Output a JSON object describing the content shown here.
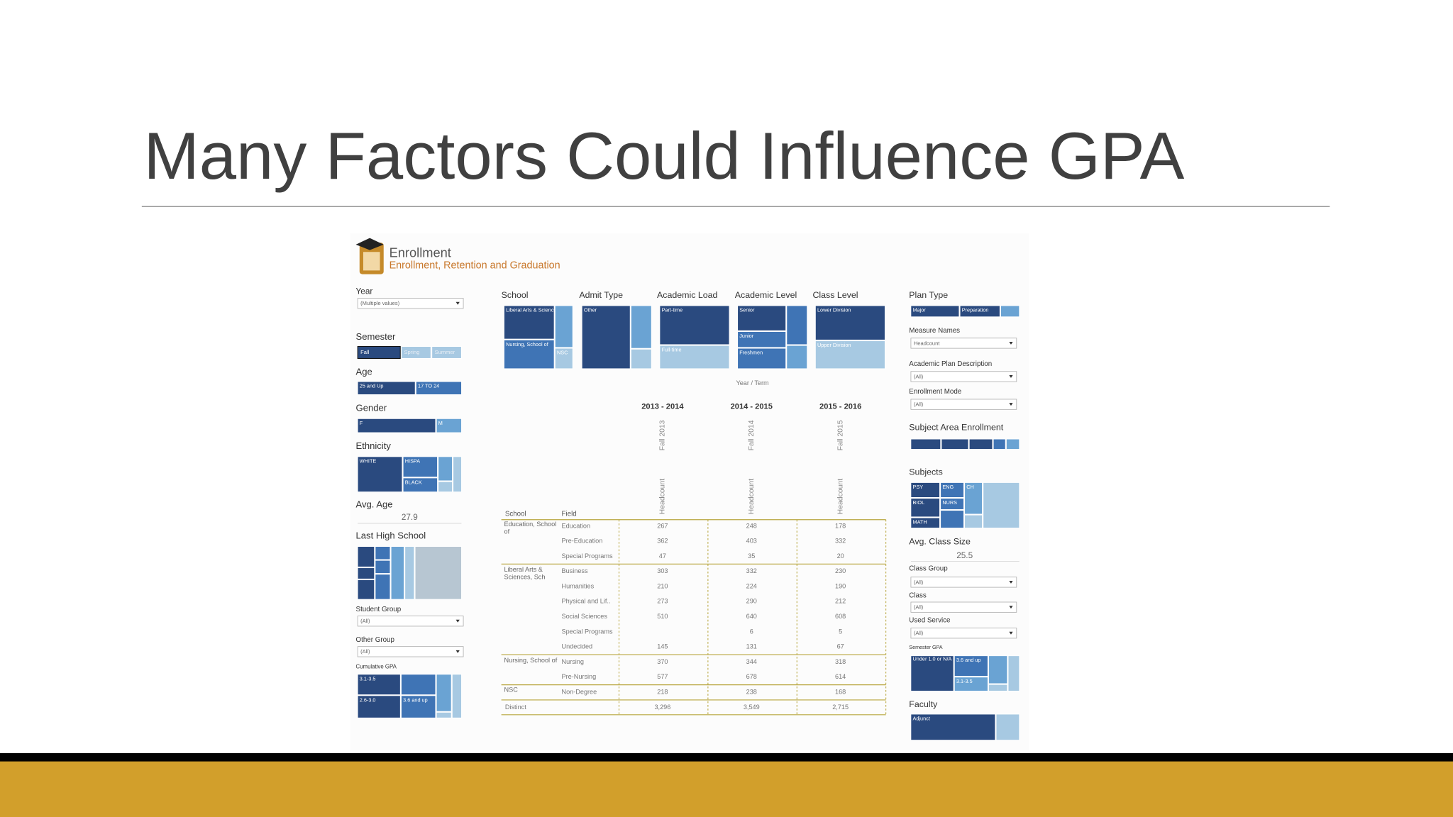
{
  "slide": {
    "title": "Many Factors Could Influence GPA"
  },
  "dashboard": {
    "header": {
      "title": "Enrollment",
      "subtitle": "Enrollment, Retention and Graduation"
    },
    "left": {
      "year": {
        "label": "Year",
        "value": "(Multiple values)"
      },
      "semester": {
        "label": "Semester",
        "options": [
          "Fall",
          "Spring",
          "Summer"
        ]
      },
      "age": {
        "label": "Age",
        "segments": [
          "25 and Up",
          "17 TO 24"
        ]
      },
      "gender": {
        "label": "Gender",
        "segments": [
          "F",
          "M"
        ]
      },
      "ethnicity": {
        "label": "Ethnicity",
        "segments": [
          "WHITE",
          "HISPA",
          "BLACK"
        ]
      },
      "avg_age": {
        "label": "Avg. Age",
        "value": "27.9"
      },
      "last_high_school": {
        "label": "Last High School"
      },
      "student_group": {
        "label": "Student Group",
        "value": "(All)"
      },
      "other_group": {
        "label": "Other Group",
        "value": "(All)"
      },
      "cumulative_gpa": {
        "label": "Cumulative GPA",
        "segments": [
          "3.1-3.5",
          "2.6-3.0",
          "3.6 and up"
        ]
      }
    },
    "top": {
      "school": {
        "label": "School",
        "segments": [
          "Liberal Arts & Sciences, Sch",
          "Nursing, School of",
          "NSC"
        ]
      },
      "admit_type": {
        "label": "Admit Type",
        "segments": [
          "Other"
        ]
      },
      "academic_load": {
        "label": "Academic Load",
        "segments": [
          "Part-time",
          "Full-time"
        ]
      },
      "academic_level": {
        "label": "Academic Level",
        "segments": [
          "Senior",
          "Junior",
          "Freshmen"
        ]
      },
      "class_level": {
        "label": "Class Level",
        "segments": [
          "Lower Division",
          "Upper Division"
        ]
      }
    },
    "table": {
      "column_header": "Year / Term",
      "years": [
        "2013 - 2014",
        "2014 - 2015",
        "2015 - 2016"
      ],
      "terms": [
        "Fall 2013",
        "Fall 2014",
        "Fall 2015"
      ],
      "measures": [
        "Headcount",
        "Headcount",
        "Headcount"
      ],
      "row_headers": [
        "School",
        "Field"
      ],
      "groups": [
        {
          "school": "Education, School of",
          "rows": [
            {
              "field": "Education",
              "values": [
                267,
                248,
                178
              ]
            },
            {
              "field": "Pre-Education",
              "values": [
                362,
                403,
                332
              ]
            },
            {
              "field": "Special Programs",
              "values": [
                47,
                35,
                20
              ]
            }
          ]
        },
        {
          "school": "Liberal Arts & Sciences, Sch",
          "rows": [
            {
              "field": "Business",
              "values": [
                303,
                332,
                230
              ]
            },
            {
              "field": "Humanities",
              "values": [
                210,
                224,
                190
              ]
            },
            {
              "field": "Physical and Lif..",
              "values": [
                273,
                290,
                212
              ]
            },
            {
              "field": "Social Sciences",
              "values": [
                510,
                640,
                608
              ]
            },
            {
              "field": "Special Programs",
              "values": [
                null,
                6,
                5
              ]
            },
            {
              "field": "Undecided",
              "values": [
                145,
                131,
                67
              ]
            }
          ]
        },
        {
          "school": "Nursing, School of",
          "rows": [
            {
              "field": "Nursing",
              "values": [
                370,
                344,
                318
              ]
            },
            {
              "field": "Pre-Nursing",
              "values": [
                577,
                678,
                614
              ]
            }
          ]
        },
        {
          "school": "NSC",
          "rows": [
            {
              "field": "Non-Degree",
              "values": [
                218,
                238,
                168
              ]
            }
          ]
        }
      ],
      "total": {
        "label": "Distinct",
        "values": [
          "3,296",
          "3,549",
          "2,715"
        ]
      }
    },
    "right": {
      "plan_type": {
        "label": "Plan Type",
        "segments": [
          "Major",
          "Preparation"
        ]
      },
      "measure_names": {
        "label": "Measure Names",
        "value": "Headcount"
      },
      "academic_plan_description": {
        "label": "Academic Plan Description",
        "value": "(All)"
      },
      "enrollment_mode": {
        "label": "Enrollment Mode",
        "value": "(All)"
      },
      "subject_area_enrollment": {
        "label": "Subject Area Enrollment"
      },
      "subjects": {
        "label": "Subjects",
        "segments": [
          "PSY",
          "ENG",
          "BIOL",
          "NURS",
          "CH",
          "MATH"
        ]
      },
      "avg_class_size": {
        "label": "Avg. Class Size",
        "value": "25.5"
      },
      "class_group": {
        "label": "Class Group",
        "value": "(All)"
      },
      "class": {
        "label": "Class",
        "value": "(All)"
      },
      "used_service": {
        "label": "Used Service",
        "value": "(All)"
      },
      "semester_gpa": {
        "label": "Semester GPA",
        "segments": [
          "Under 1.0 or N/A",
          "3.6 and up",
          "3.1-3.5"
        ]
      },
      "faculty": {
        "label": "Faculty",
        "segments": [
          "Adjunct"
        ]
      }
    }
  }
}
